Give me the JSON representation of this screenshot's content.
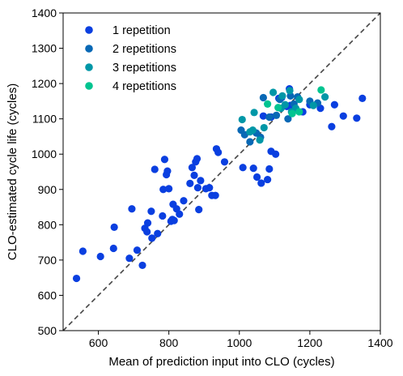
{
  "chart_data": {
    "type": "scatter",
    "xlabel": "Mean of prediction input into CLO (cycles)",
    "ylabel": "CLO-estimated cycle life (cycles)",
    "xlim": [
      500,
      1400
    ],
    "ylim": [
      500,
      1400
    ],
    "xticks": [
      600,
      800,
      1000,
      1200,
      1400
    ],
    "yticks": [
      500,
      600,
      700,
      800,
      900,
      1000,
      1100,
      1200,
      1300,
      1400
    ],
    "xtick_labels": [
      "600",
      "800",
      "1000",
      "1200",
      "1400"
    ],
    "ytick_labels": [
      "500",
      "600",
      "700",
      "800",
      "900",
      "1000",
      "1100",
      "1200",
      "1300",
      "1400"
    ],
    "grid": false,
    "legend_position": "top-left",
    "reference_line": {
      "style": "dashed",
      "color": "#444444",
      "from": [
        500,
        500
      ],
      "to": [
        1400,
        1400
      ]
    },
    "series": [
      {
        "name": "1 repetition",
        "color": "#0a3fe0",
        "points": [
          [
            538,
            648
          ],
          [
            556,
            725
          ],
          [
            606,
            710
          ],
          [
            643,
            733
          ],
          [
            645,
            793
          ],
          [
            688,
            705
          ],
          [
            695,
            845
          ],
          [
            710,
            728
          ],
          [
            725,
            685
          ],
          [
            732,
            790
          ],
          [
            740,
            805
          ],
          [
            738,
            780
          ],
          [
            752,
            762
          ],
          [
            750,
            838
          ],
          [
            760,
            957
          ],
          [
            768,
            775
          ],
          [
            782,
            825
          ],
          [
            784,
            900
          ],
          [
            788,
            985
          ],
          [
            793,
            942
          ],
          [
            796,
            952
          ],
          [
            800,
            902
          ],
          [
            806,
            810
          ],
          [
            810,
            815
          ],
          [
            812,
            858
          ],
          [
            815,
            812
          ],
          [
            822,
            845
          ],
          [
            830,
            830
          ],
          [
            842,
            868
          ],
          [
            860,
            917
          ],
          [
            866,
            962
          ],
          [
            872,
            940
          ],
          [
            876,
            978
          ],
          [
            880,
            987
          ],
          [
            882,
            905
          ],
          [
            885,
            843
          ],
          [
            890,
            925
          ],
          [
            905,
            902
          ],
          [
            915,
            905
          ],
          [
            922,
            883
          ],
          [
            932,
            883
          ],
          [
            935,
            1015
          ],
          [
            940,
            1005
          ],
          [
            958,
            978
          ],
          [
            1010,
            962
          ],
          [
            1040,
            960
          ],
          [
            1050,
            935
          ],
          [
            1062,
            918
          ],
          [
            1080,
            928
          ],
          [
            1085,
            958
          ],
          [
            1090,
            1008
          ],
          [
            1103,
            1000
          ],
          [
            1068,
            1108
          ],
          [
            1090,
            1105
          ],
          [
            1112,
            1158
          ],
          [
            1120,
            1160
          ],
          [
            1135,
            1135
          ],
          [
            1142,
            1185
          ],
          [
            1145,
            1138
          ],
          [
            1180,
            1120
          ],
          [
            1200,
            1140
          ],
          [
            1230,
            1130
          ],
          [
            1262,
            1078
          ],
          [
            1270,
            1140
          ],
          [
            1295,
            1108
          ],
          [
            1333,
            1102
          ],
          [
            1349,
            1158
          ]
        ]
      },
      {
        "name": "2 repetitions",
        "color": "#0868b5",
        "points": [
          [
            1005,
            1068
          ],
          [
            1015,
            1055
          ],
          [
            1030,
            1035
          ],
          [
            1048,
            1060
          ],
          [
            1060,
            1048
          ],
          [
            1068,
            1160
          ],
          [
            1085,
            1105
          ],
          [
            1105,
            1110
          ],
          [
            1115,
            1155
          ],
          [
            1138,
            1100
          ],
          [
            1145,
            1165
          ],
          [
            1155,
            1142
          ],
          [
            1165,
            1162
          ],
          [
            1200,
            1150
          ],
          [
            1222,
            1145
          ]
        ]
      },
      {
        "name": "3 repetitions",
        "color": "#0097a7",
        "points": [
          [
            1008,
            1098
          ],
          [
            1030,
            1063
          ],
          [
            1038,
            1068
          ],
          [
            1042,
            1118
          ],
          [
            1058,
            1040
          ],
          [
            1070,
            1075
          ],
          [
            1096,
            1175
          ],
          [
            1118,
            1130
          ],
          [
            1122,
            1165
          ],
          [
            1130,
            1140
          ],
          [
            1143,
            1180
          ],
          [
            1148,
            1120
          ],
          [
            1160,
            1130
          ],
          [
            1170,
            1155
          ],
          [
            1210,
            1138
          ],
          [
            1243,
            1162
          ]
        ]
      },
      {
        "name": "4 repetitions",
        "color": "#00c490",
        "points": [
          [
            1080,
            1142
          ],
          [
            1110,
            1132
          ],
          [
            1150,
            1115
          ],
          [
            1170,
            1120
          ],
          [
            1232,
            1182
          ]
        ]
      }
    ]
  }
}
